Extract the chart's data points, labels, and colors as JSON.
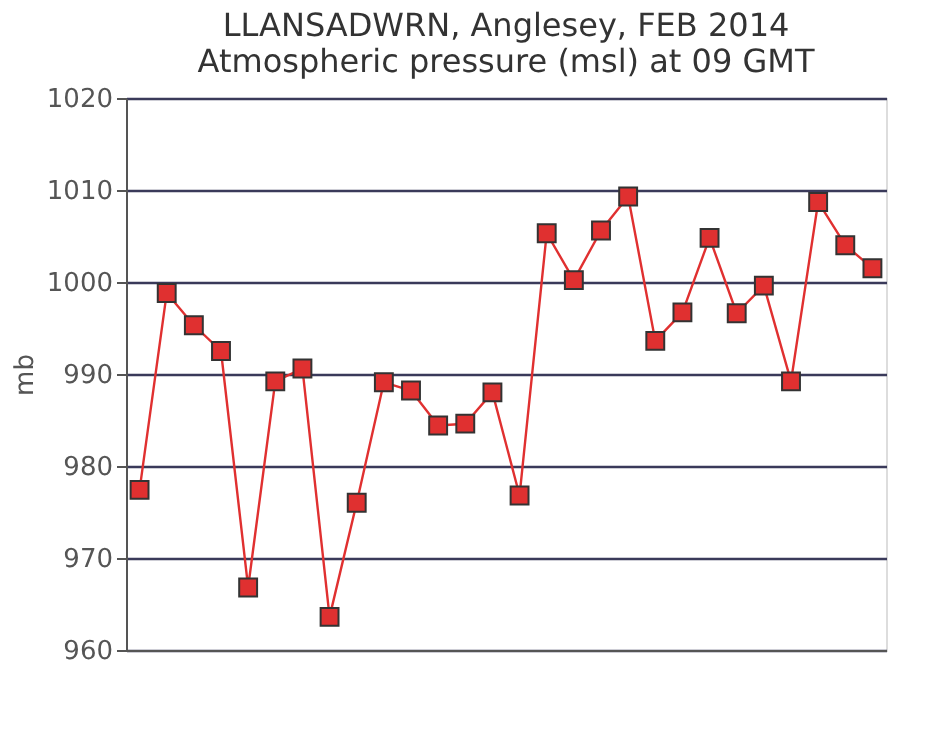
{
  "chart_data": {
    "type": "line",
    "title": [
      "LLANSADWRN, Anglesey,  FEB 2014",
      "Atmospheric pressure  (msl) at 09 GMT"
    ],
    "ylabel": "mb",
    "categories": [
      null,
      null,
      null,
      null,
      null,
      null,
      null,
      null,
      null,
      null,
      null,
      null,
      null,
      null,
      null,
      null,
      null,
      null,
      null,
      null,
      null,
      null,
      null,
      null,
      null,
      null,
      null,
      null
    ],
    "series": [
      {
        "color": "#e03030",
        "values": [
          977.4,
          998.8,
          995.3,
          992.5,
          966.8,
          989.2,
          990.6,
          963.6,
          976.0,
          989.1,
          988.2,
          984.4,
          984.6,
          988.0,
          976.8,
          1005.3,
          1000.2,
          1005.6,
          1009.3,
          993.6,
          996.7,
          1004.8,
          996.6,
          999.6,
          989.2,
          1008.7,
          1004.0,
          1001.5
        ]
      }
    ],
    "ylim": [
      960,
      1020
    ],
    "yticks": [
      960,
      970,
      980,
      990,
      1000,
      1010,
      1020
    ],
    "grid": "y",
    "marker": "square",
    "line_style": "solid"
  }
}
